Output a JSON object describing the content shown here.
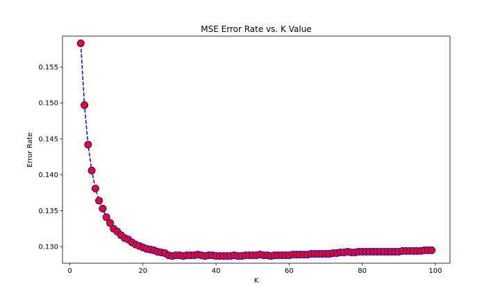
{
  "chart_data": {
    "type": "line",
    "title": "MSE Error Rate vs. K Value",
    "xlabel": "K",
    "ylabel": "Error Rate",
    "xlim": [
      -2,
      104
    ],
    "ylim": [
      0.1277,
      0.1593
    ],
    "x_ticks": [
      0,
      20,
      40,
      60,
      80,
      100
    ],
    "y_ticks": [
      0.13,
      0.135,
      0.14,
      0.145,
      0.15,
      0.155
    ],
    "x_tick_labels": [
      "0",
      "20",
      "40",
      "60",
      "80",
      "100"
    ],
    "y_tick_labels": [
      "0.130",
      "0.135",
      "0.140",
      "0.145",
      "0.150",
      "0.155"
    ],
    "grid": false,
    "legend": "none",
    "series": [
      {
        "line_color": "#0000ff",
        "line_style": "dashed",
        "marker": "circle",
        "marker_face_color": "#ff0000",
        "marker_edge_color": "#0000ff",
        "x": [
          3,
          4,
          5,
          6,
          7,
          8,
          9,
          10,
          11,
          12,
          13,
          14,
          15,
          16,
          17,
          18,
          19,
          20,
          21,
          22,
          23,
          24,
          25,
          26,
          27,
          28,
          29,
          30,
          31,
          32,
          33,
          34,
          35,
          36,
          37,
          38,
          39,
          40,
          41,
          42,
          43,
          44,
          45,
          46,
          47,
          48,
          49,
          50,
          51,
          52,
          53,
          54,
          55,
          56,
          57,
          58,
          59,
          60,
          61,
          62,
          63,
          64,
          65,
          66,
          67,
          68,
          69,
          70,
          71,
          72,
          73,
          74,
          75,
          76,
          77,
          78,
          79,
          80,
          81,
          82,
          83,
          84,
          85,
          86,
          87,
          88,
          89,
          90,
          91,
          92,
          93,
          94,
          95,
          96,
          97,
          98,
          99
        ],
        "values": [
          0.1583,
          0.1497,
          0.1442,
          0.1406,
          0.1381,
          0.1364,
          0.1353,
          0.1341,
          0.1333,
          0.1325,
          0.1321,
          0.1316,
          0.1312,
          0.131,
          0.1306,
          0.1303,
          0.1301,
          0.1299,
          0.1297,
          0.1296,
          0.1295,
          0.1293,
          0.1292,
          0.1291,
          0.1288,
          0.1287,
          0.1288,
          0.1288,
          0.1287,
          0.1288,
          0.1288,
          0.1288,
          0.1289,
          0.1288,
          0.1287,
          0.1288,
          0.1288,
          0.1287,
          0.1287,
          0.1287,
          0.1287,
          0.1287,
          0.1288,
          0.1287,
          0.1287,
          0.1288,
          0.1288,
          0.1288,
          0.1288,
          0.1289,
          0.1288,
          0.1288,
          0.1287,
          0.1288,
          0.1288,
          0.1288,
          0.1288,
          0.1288,
          0.1289,
          0.1289,
          0.1289,
          0.1289,
          0.1289,
          0.129,
          0.129,
          0.129,
          0.129,
          0.129,
          0.129,
          0.1291,
          0.1291,
          0.1292,
          0.1292,
          0.1293,
          0.1292,
          0.1292,
          0.1293,
          0.1293,
          0.1293,
          0.1293,
          0.1293,
          0.1293,
          0.1293,
          0.1293,
          0.1293,
          0.1293,
          0.1293,
          0.1293,
          0.1294,
          0.1294,
          0.1294,
          0.1294,
          0.1294,
          0.1294,
          0.1295,
          0.1295,
          0.1295
        ]
      }
    ]
  }
}
